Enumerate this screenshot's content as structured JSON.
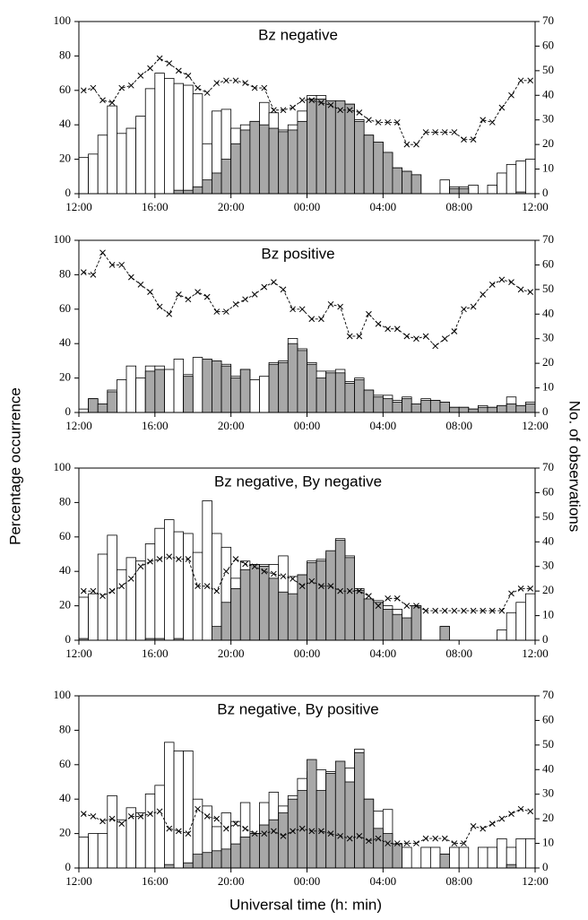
{
  "figure": {
    "ylabel": "Percentage occurrence",
    "y2label": "No. of observations",
    "xlabel": "Universal time (h: min)"
  },
  "chart_data": [
    {
      "type": "bar",
      "title": "Bz negative",
      "x": [
        12.25,
        12.75,
        13.25,
        13.75,
        14.25,
        14.75,
        15.25,
        15.75,
        16.25,
        16.75,
        17.25,
        17.75,
        18.25,
        18.75,
        19.25,
        19.75,
        20.25,
        20.75,
        21.25,
        21.75,
        22.25,
        22.75,
        23.25,
        23.75,
        24.25,
        24.75,
        25.25,
        25.75,
        26.25,
        26.75,
        27.25,
        27.75,
        28.25,
        28.75,
        29.25,
        29.75,
        30.25,
        30.75,
        31.25,
        31.75,
        32.25,
        32.75,
        33.25,
        33.75,
        34.25,
        34.75,
        35.25,
        35.75
      ],
      "xlim": [
        12,
        36
      ],
      "xticks": [
        {
          "value": 12,
          "label": "12:00"
        },
        {
          "value": 16,
          "label": "16:00"
        },
        {
          "value": 20,
          "label": "20:00"
        },
        {
          "value": 24,
          "label": "00:00"
        },
        {
          "value": 28,
          "label": "04:00"
        },
        {
          "value": 32,
          "label": "08:00"
        },
        {
          "value": 36,
          "label": "12:00"
        }
      ],
      "ylim": [
        0,
        100
      ],
      "yticks": [
        0,
        20,
        40,
        60,
        80,
        100
      ],
      "y2lim": [
        0,
        70
      ],
      "y2ticks": [
        0,
        10,
        20,
        30,
        40,
        50,
        60,
        70
      ],
      "series": [
        {
          "color": "#ffffff",
          "values": [
            21,
            23,
            34,
            51,
            35,
            38,
            45,
            61,
            70,
            67,
            64,
            63,
            58,
            29,
            48,
            49,
            38,
            40,
            42,
            53,
            47,
            37,
            40,
            48,
            57,
            57,
            53,
            53,
            52,
            43,
            34,
            30,
            24,
            15,
            13,
            11,
            0,
            0,
            8,
            4,
            4,
            5,
            0,
            5,
            12,
            17,
            19,
            20
          ]
        },
        {
          "color": "#a8a8a8",
          "values": [
            0,
            0,
            0,
            0,
            0,
            0,
            0,
            0,
            0,
            0,
            2,
            2,
            4,
            8,
            12,
            20,
            29,
            37,
            42,
            40,
            38,
            36,
            37,
            42,
            55,
            55,
            54,
            54,
            52,
            42,
            34,
            30,
            24,
            15,
            13,
            11,
            0,
            0,
            0,
            3,
            3,
            0,
            0,
            0,
            0,
            0,
            1,
            0
          ]
        },
        {
          "type": "line",
          "axis": "y2",
          "color": "#000000",
          "values": [
            42,
            43,
            38,
            37,
            43,
            44,
            48,
            51,
            55,
            53,
            50,
            48,
            43,
            41,
            45,
            46,
            46,
            45,
            43,
            43,
            34,
            34,
            35,
            38,
            38,
            37,
            36,
            34,
            34,
            33,
            30,
            29,
            29,
            29,
            20,
            20,
            25,
            25,
            25,
            25,
            22,
            22,
            30,
            29,
            35,
            40,
            46,
            46
          ]
        }
      ]
    },
    {
      "type": "bar",
      "title": "Bz positive",
      "x": [
        12.25,
        12.75,
        13.25,
        13.75,
        14.25,
        14.75,
        15.25,
        15.75,
        16.25,
        16.75,
        17.25,
        17.75,
        18.25,
        18.75,
        19.25,
        19.75,
        20.25,
        20.75,
        21.25,
        21.75,
        22.25,
        22.75,
        23.25,
        23.75,
        24.25,
        24.75,
        25.25,
        25.75,
        26.25,
        26.75,
        27.25,
        27.75,
        28.25,
        28.75,
        29.25,
        29.75,
        30.25,
        30.75,
        31.25,
        31.75,
        32.25,
        32.75,
        33.25,
        33.75,
        34.25,
        34.75,
        35.25,
        35.75
      ],
      "xlim": [
        12,
        36
      ],
      "xticks": [
        {
          "value": 12,
          "label": "12:00"
        },
        {
          "value": 16,
          "label": "16:00"
        },
        {
          "value": 20,
          "label": "20:00"
        },
        {
          "value": 24,
          "label": "00:00"
        },
        {
          "value": 28,
          "label": "04:00"
        },
        {
          "value": 32,
          "label": "08:00"
        },
        {
          "value": 36,
          "label": "12:00"
        }
      ],
      "ylim": [
        0,
        100
      ],
      "yticks": [
        0,
        20,
        40,
        60,
        80,
        100
      ],
      "y2lim": [
        0,
        70
      ],
      "y2ticks": [
        0,
        10,
        20,
        30,
        40,
        50,
        60,
        70
      ],
      "series": [
        {
          "color": "#ffffff",
          "values": [
            2,
            8,
            5,
            13,
            19,
            27,
            20,
            27,
            27,
            25,
            31,
            22,
            32,
            30,
            26,
            28,
            21,
            25,
            19,
            21,
            29,
            30,
            43,
            37,
            29,
            24,
            24,
            25,
            18,
            20,
            13,
            10,
            10,
            7,
            9,
            5,
            8,
            7,
            6,
            3,
            3,
            2,
            4,
            3,
            4,
            9,
            4,
            6
          ]
        },
        {
          "color": "#a8a8a8",
          "values": [
            0,
            8,
            5,
            12,
            0,
            0,
            0,
            24,
            25,
            0,
            0,
            21,
            0,
            31,
            30,
            27,
            20,
            25,
            0,
            0,
            28,
            29,
            40,
            36,
            28,
            20,
            23,
            23,
            17,
            19,
            13,
            9,
            8,
            6,
            8,
            5,
            7,
            7,
            6,
            3,
            3,
            2,
            3,
            3,
            4,
            5,
            4,
            5
          ]
        },
        {
          "type": "line",
          "axis": "y2",
          "color": "#000000",
          "values": [
            57,
            56,
            65,
            60,
            60,
            55,
            52,
            49,
            43,
            40,
            48,
            46,
            49,
            47,
            41,
            41,
            44,
            46,
            48,
            51,
            53,
            50,
            42,
            42,
            38,
            38,
            44,
            43,
            31,
            31,
            40,
            36,
            34,
            34,
            31,
            30,
            31,
            27,
            30,
            33,
            42,
            43,
            48,
            52,
            54,
            53,
            50,
            49
          ]
        }
      ]
    },
    {
      "type": "bar",
      "title": "Bz negative, By negative",
      "x": [
        12.25,
        12.75,
        13.25,
        13.75,
        14.25,
        14.75,
        15.25,
        15.75,
        16.25,
        16.75,
        17.25,
        17.75,
        18.25,
        18.75,
        19.25,
        19.75,
        20.25,
        20.75,
        21.25,
        21.75,
        22.25,
        22.75,
        23.25,
        23.75,
        24.25,
        24.75,
        25.25,
        25.75,
        26.25,
        26.75,
        27.25,
        27.75,
        28.25,
        28.75,
        29.25,
        29.75,
        30.25,
        30.75,
        31.25,
        31.75,
        32.25,
        32.75,
        33.25,
        33.75,
        34.25,
        34.75,
        35.25,
        35.75
      ],
      "xlim": [
        12,
        36
      ],
      "xticks": [
        {
          "value": 12,
          "label": "12:00"
        },
        {
          "value": 16,
          "label": "16:00"
        },
        {
          "value": 20,
          "label": "20:00"
        },
        {
          "value": 24,
          "label": "00:00"
        },
        {
          "value": 28,
          "label": "04:00"
        },
        {
          "value": 32,
          "label": "08:00"
        },
        {
          "value": 36,
          "label": "12:00"
        }
      ],
      "ylim": [
        0,
        100
      ],
      "yticks": [
        0,
        20,
        40,
        60,
        80,
        100
      ],
      "y2lim": [
        0,
        70
      ],
      "y2ticks": [
        0,
        10,
        20,
        30,
        40,
        50,
        60,
        70
      ],
      "series": [
        {
          "color": "#ffffff",
          "values": [
            25,
            27,
            50,
            61,
            41,
            48,
            46,
            56,
            65,
            70,
            63,
            62,
            51,
            81,
            62,
            54,
            36,
            46,
            44,
            44,
            44,
            49,
            37,
            38,
            46,
            47,
            51,
            59,
            49,
            30,
            24,
            23,
            20,
            18,
            10,
            20,
            0,
            0,
            8,
            0,
            0,
            0,
            0,
            0,
            6,
            16,
            22,
            27
          ]
        },
        {
          "color": "#a8a8a8",
          "values": [
            1,
            0,
            0,
            0,
            0,
            0,
            0,
            1,
            1,
            0,
            1,
            0,
            0,
            0,
            8,
            22,
            30,
            41,
            44,
            43,
            36,
            28,
            27,
            38,
            45,
            46,
            52,
            58,
            48,
            29,
            24,
            22,
            18,
            15,
            13,
            20,
            0,
            0,
            8,
            0,
            0,
            0,
            0,
            0,
            0,
            0,
            0,
            0
          ]
        },
        {
          "type": "line",
          "axis": "y2",
          "color": "#000000",
          "values": [
            20,
            20,
            18,
            20,
            22,
            25,
            30,
            32,
            33,
            34,
            33,
            33,
            22,
            22,
            20,
            28,
            33,
            31,
            30,
            28,
            27,
            26,
            25,
            22,
            24,
            22,
            22,
            20,
            20,
            20,
            18,
            14,
            17,
            17,
            14,
            14,
            12,
            12,
            12,
            12,
            12,
            12,
            12,
            12,
            12,
            19,
            21,
            21
          ]
        }
      ]
    },
    {
      "type": "bar",
      "title": "Bz negative, By positive",
      "x": [
        12.25,
        12.75,
        13.25,
        13.75,
        14.25,
        14.75,
        15.25,
        15.75,
        16.25,
        16.75,
        17.25,
        17.75,
        18.25,
        18.75,
        19.25,
        19.75,
        20.25,
        20.75,
        21.25,
        21.75,
        22.25,
        22.75,
        23.25,
        23.75,
        24.25,
        24.75,
        25.25,
        25.75,
        26.25,
        26.75,
        27.25,
        27.75,
        28.25,
        28.75,
        29.25,
        29.75,
        30.25,
        30.75,
        31.25,
        31.75,
        32.25,
        32.75,
        33.25,
        33.75,
        34.25,
        34.75,
        35.25,
        35.75
      ],
      "xlim": [
        12,
        36
      ],
      "xticks": [
        {
          "value": 12,
          "label": "12:00"
        },
        {
          "value": 16,
          "label": "16:00"
        },
        {
          "value": 20,
          "label": "20:00"
        },
        {
          "value": 24,
          "label": "00:00"
        },
        {
          "value": 28,
          "label": "04:00"
        },
        {
          "value": 32,
          "label": "08:00"
        },
        {
          "value": 36,
          "label": "12:00"
        }
      ],
      "ylim": [
        0,
        100
      ],
      "yticks": [
        0,
        20,
        40,
        60,
        80,
        100
      ],
      "y2lim": [
        0,
        70
      ],
      "y2ticks": [
        0,
        10,
        20,
        30,
        40,
        50,
        60,
        70
      ],
      "series": [
        {
          "color": "#ffffff",
          "values": [
            18,
            20,
            20,
            42,
            28,
            35,
            32,
            43,
            48,
            73,
            68,
            68,
            40,
            36,
            24,
            32,
            27,
            38,
            20,
            38,
            44,
            36,
            42,
            52,
            56,
            57,
            56,
            52,
            58,
            69,
            40,
            33,
            34,
            14,
            12,
            0,
            12,
            12,
            8,
            12,
            12,
            0,
            12,
            12,
            17,
            12,
            17,
            17
          ]
        },
        {
          "color": "#a8a8a8",
          "values": [
            0,
            0,
            0,
            0,
            0,
            0,
            0,
            0,
            0,
            2,
            0,
            3,
            8,
            9,
            10,
            11,
            14,
            18,
            20,
            25,
            28,
            32,
            40,
            45,
            63,
            45,
            55,
            62,
            50,
            67,
            40,
            23,
            20,
            14,
            0,
            0,
            0,
            0,
            8,
            0,
            0,
            0,
            0,
            0,
            0,
            2,
            0,
            0
          ]
        },
        {
          "type": "line",
          "axis": "y2",
          "color": "#000000",
          "values": [
            22,
            21,
            19,
            20,
            18,
            21,
            21,
            22,
            23,
            16,
            15,
            14,
            24,
            21,
            20,
            16,
            18,
            16,
            14,
            14,
            15,
            13,
            15,
            16,
            15,
            15,
            14,
            13,
            12,
            13,
            11,
            12,
            10,
            10,
            10,
            10,
            12,
            12,
            12,
            10,
            10,
            17,
            16,
            18,
            20,
            22,
            24,
            23
          ]
        }
      ]
    }
  ]
}
